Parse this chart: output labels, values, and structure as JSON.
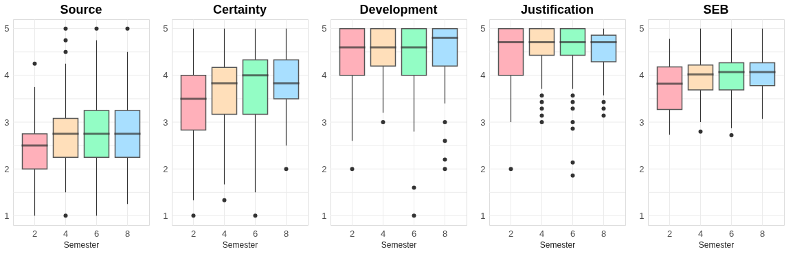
{
  "chart_data": [
    {
      "type": "box",
      "title": "Source",
      "xlabel": "Semester",
      "categories": [
        "2",
        "4",
        "6",
        "8"
      ],
      "colors": [
        "#ffb0ba",
        "#ffdfba",
        "#93fdc5",
        "#a8dfff"
      ],
      "ylim": [
        0.8,
        5.2
      ],
      "yticks": [
        1,
        {
          "value": 1.5,
          "label": null
        },
        2,
        {
          "value": 2.5,
          "label": null
        },
        3,
        {
          "value": 3.5,
          "label": null
        },
        4,
        {
          "value": 4.5,
          "label": null
        },
        5
      ],
      "grid": true,
      "boxes": [
        {
          "low": 1,
          "q1": 2.0,
          "median": 2.5,
          "q3": 2.75,
          "high": 3.75,
          "outliers": [
            4.25
          ]
        },
        {
          "low": 1.5,
          "q1": 2.25,
          "median": 2.75,
          "q3": 3.08,
          "high": 4.25,
          "outliers": [
            5,
            4.75,
            4.5,
            1
          ]
        },
        {
          "low": 1,
          "q1": 2.25,
          "median": 2.75,
          "q3": 3.25,
          "high": 4.75,
          "outliers": [
            5
          ]
        },
        {
          "low": 1.25,
          "q1": 2.25,
          "median": 2.75,
          "q3": 3.25,
          "high": 4.5,
          "outliers": [
            5
          ]
        }
      ]
    },
    {
      "type": "box",
      "title": "Certainty",
      "xlabel": "Semester",
      "categories": [
        "2",
        "4",
        "6",
        "8"
      ],
      "colors": [
        "#ffb0ba",
        "#ffdfba",
        "#93fdc5",
        "#a8dfff"
      ],
      "ylim": [
        0.8,
        5.2
      ],
      "yticks": [
        1,
        {
          "value": 1.5,
          "label": null
        },
        2,
        {
          "value": 2.5,
          "label": null
        },
        3,
        {
          "value": 3.5,
          "label": null
        },
        4,
        {
          "value": 4.5,
          "label": null
        },
        5
      ],
      "grid": true,
      "boxes": [
        {
          "low": 1.33,
          "q1": 2.83,
          "median": 3.5,
          "q3": 4.0,
          "high": 5,
          "outliers": [
            1
          ]
        },
        {
          "low": 1.67,
          "q1": 3.17,
          "median": 3.83,
          "q3": 4.17,
          "high": 5,
          "outliers": [
            1.33
          ]
        },
        {
          "low": 1.5,
          "q1": 3.17,
          "median": 4.0,
          "q3": 4.33,
          "high": 5,
          "outliers": [
            1
          ]
        },
        {
          "low": 2.5,
          "q1": 3.5,
          "median": 3.83,
          "q3": 4.33,
          "high": 5,
          "outliers": [
            2
          ]
        }
      ]
    },
    {
      "type": "box",
      "title": "Development",
      "xlabel": "Semester",
      "categories": [
        "2",
        "4",
        "6",
        "8"
      ],
      "colors": [
        "#ffb0ba",
        "#ffdfba",
        "#93fdc5",
        "#a8dfff"
      ],
      "ylim": [
        0.8,
        5.2
      ],
      "yticks": [
        1,
        {
          "value": 1.5,
          "label": null
        },
        2,
        {
          "value": 2.5,
          "label": null
        },
        3,
        {
          "value": 3.5,
          "label": null
        },
        4,
        {
          "value": 4.5,
          "label": null
        },
        5
      ],
      "grid": true,
      "boxes": [
        {
          "low": 2.6,
          "q1": 4.0,
          "median": 4.6,
          "q3": 5.0,
          "high": 5,
          "outliers": [
            2
          ]
        },
        {
          "low": 3.2,
          "q1": 4.2,
          "median": 4.6,
          "q3": 5.0,
          "high": 5,
          "outliers": [
            3
          ]
        },
        {
          "low": 2.8,
          "q1": 4.0,
          "median": 4.6,
          "q3": 5.0,
          "high": 5,
          "outliers": [
            1.6,
            1
          ]
        },
        {
          "low": 3.4,
          "q1": 4.2,
          "median": 4.8,
          "q3": 5.0,
          "high": 5,
          "outliers": [
            3,
            2.6,
            2.2,
            2
          ]
        }
      ]
    },
    {
      "type": "box",
      "title": "Justification",
      "xlabel": "Semester",
      "categories": [
        "2",
        "4",
        "6",
        "8"
      ],
      "colors": [
        "#ffb0ba",
        "#ffdfba",
        "#93fdc5",
        "#a8dfff"
      ],
      "ylim": [
        0.8,
        5.2
      ],
      "yticks": [
        1,
        {
          "value": 1.5,
          "label": null
        },
        2,
        {
          "value": 2.5,
          "label": null
        },
        3,
        {
          "value": 3.5,
          "label": null
        },
        4,
        {
          "value": 4.5,
          "label": null
        },
        5
      ],
      "grid": true,
      "boxes": [
        {
          "low": 3.0,
          "q1": 4.0,
          "median": 4.71,
          "q3": 5.0,
          "high": 5,
          "outliers": [
            2
          ]
        },
        {
          "low": 3.71,
          "q1": 4.43,
          "median": 4.71,
          "q3": 5.0,
          "high": 5,
          "outliers": [
            3.57,
            3.43,
            3.29,
            3.14,
            3.0
          ]
        },
        {
          "low": 3.71,
          "q1": 4.43,
          "median": 4.71,
          "q3": 5.0,
          "high": 5,
          "outliers": [
            3.57,
            3.43,
            3.29,
            3.0,
            2.86,
            2.14,
            1.86
          ]
        },
        {
          "low": 3.57,
          "q1": 4.29,
          "median": 4.71,
          "q3": 4.86,
          "high": 5,
          "outliers": [
            3.43,
            3.29,
            3.14
          ]
        }
      ]
    },
    {
      "type": "box",
      "title": "SEB",
      "xlabel": "Semester",
      "categories": [
        "2",
        "4",
        "6",
        "8"
      ],
      "colors": [
        "#ffb0ba",
        "#ffdfba",
        "#93fdc5",
        "#a8dfff"
      ],
      "ylim": [
        0.8,
        5.2
      ],
      "yticks": [
        1,
        {
          "value": 1.5,
          "label": null
        },
        2,
        {
          "value": 2.5,
          "label": null
        },
        3,
        {
          "value": 3.5,
          "label": null
        },
        4,
        {
          "value": 4.5,
          "label": null
        },
        5
      ],
      "grid": true,
      "boxes": [
        {
          "low": 2.73,
          "q1": 3.27,
          "median": 3.82,
          "q3": 4.18,
          "high": 4.78
        },
        {
          "low": 3.0,
          "q1": 3.69,
          "median": 4.02,
          "q3": 4.22,
          "high": 5,
          "outliers": [
            2.8
          ]
        },
        {
          "low": 2.87,
          "q1": 3.69,
          "median": 4.07,
          "q3": 4.27,
          "high": 5,
          "outliers": [
            2.72
          ]
        },
        {
          "low": 3.07,
          "q1": 3.78,
          "median": 4.07,
          "q3": 4.27,
          "high": 5
        }
      ]
    }
  ]
}
